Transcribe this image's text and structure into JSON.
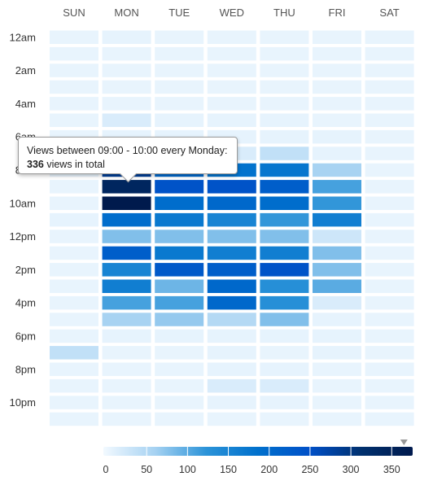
{
  "chart_data": {
    "type": "heatmap",
    "days": [
      "SUN",
      "MON",
      "TUE",
      "WED",
      "THU",
      "FRI",
      "SAT"
    ],
    "hour_labels": [
      "12am",
      "",
      "2am",
      "",
      "4am",
      "",
      "6am",
      "",
      "8am",
      "",
      "10am",
      "",
      "12pm",
      "",
      "2pm",
      "",
      "4pm",
      "",
      "6pm",
      "",
      "8pm",
      "",
      "10pm",
      ""
    ],
    "values": [
      [
        8,
        10,
        8,
        8,
        8,
        8,
        8
      ],
      [
        8,
        8,
        8,
        8,
        8,
        8,
        8
      ],
      [
        8,
        8,
        8,
        8,
        8,
        8,
        8
      ],
      [
        8,
        8,
        8,
        8,
        8,
        8,
        8
      ],
      [
        8,
        8,
        8,
        8,
        8,
        8,
        8
      ],
      [
        8,
        20,
        10,
        10,
        10,
        8,
        8
      ],
      [
        8,
        10,
        10,
        10,
        10,
        10,
        8
      ],
      [
        8,
        30,
        20,
        20,
        40,
        10,
        8
      ],
      [
        8,
        280,
        200,
        180,
        175,
        60,
        8
      ],
      [
        8,
        336,
        240,
        240,
        220,
        110,
        8
      ],
      [
        8,
        370,
        190,
        200,
        190,
        120,
        8
      ],
      [
        10,
        190,
        170,
        150,
        120,
        160,
        8
      ],
      [
        8,
        80,
        80,
        80,
        80,
        30,
        8
      ],
      [
        8,
        220,
        170,
        160,
        160,
        80,
        8
      ],
      [
        8,
        150,
        230,
        220,
        240,
        80,
        8
      ],
      [
        8,
        160,
        90,
        200,
        130,
        100,
        8
      ],
      [
        8,
        110,
        110,
        200,
        130,
        20,
        8
      ],
      [
        8,
        60,
        70,
        50,
        80,
        10,
        8
      ],
      [
        8,
        10,
        10,
        10,
        10,
        10,
        8
      ],
      [
        40,
        8,
        8,
        10,
        8,
        10,
        8
      ],
      [
        8,
        8,
        8,
        10,
        10,
        8,
        8
      ],
      [
        8,
        8,
        8,
        20,
        20,
        8,
        8
      ],
      [
        8,
        8,
        8,
        10,
        10,
        8,
        8
      ],
      [
        8,
        8,
        8,
        8,
        8,
        8,
        8
      ]
    ],
    "color_scale": {
      "min": 0,
      "max": 370,
      "ticks": [
        0,
        50,
        100,
        150,
        200,
        250,
        300,
        350
      ],
      "colors": [
        "#f2f9ff",
        "#a6d2f2",
        "#2b93d8",
        "#0070cc",
        "#0050c8",
        "#00306e",
        "#001a4d"
      ],
      "marker_value": 365
    },
    "tooltip": {
      "line1": "Views between 09:00 - 10:00 every Monday:",
      "count": "336",
      "line2_suffix": " views in total",
      "cell_day": "MON",
      "cell_hour_index": 9
    },
    "colors": {
      "day_label": "#555555",
      "hour_label": "#333333"
    }
  }
}
